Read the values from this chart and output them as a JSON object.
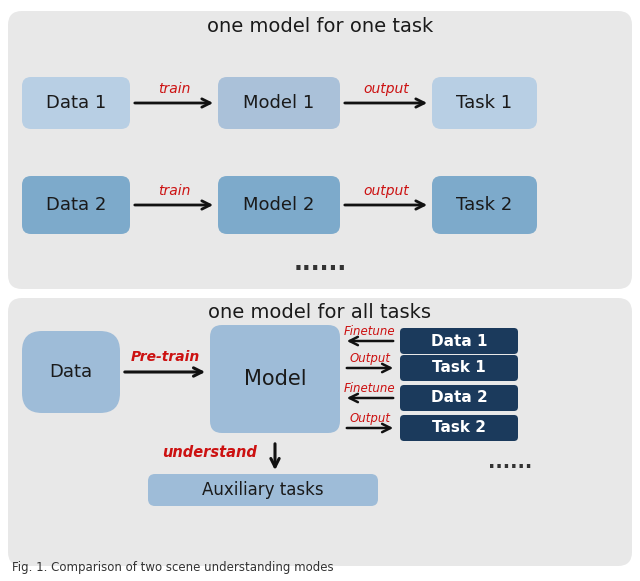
{
  "title_top": "one model for one task",
  "title_bottom": "one model for all tasks",
  "caption": "Fig. 1. Comparison of two scene understanding modes",
  "bg_color": "#e8e8e8",
  "box_light_blue_row1": "#b8ccdf",
  "box_medium_blue_row1": "#aac0d8",
  "box_darker_blue_row2": "#7ba3cc",
  "box_model_bottom": "#a0bcda",
  "box_data_bottom": "#a0bcda",
  "box_dark_navy": "#1b3a5c",
  "box_aux": "#a8c0d8",
  "text_black": "#1a1a1a",
  "text_red": "#cc1111",
  "text_white": "#ffffff",
  "arrow_color": "#111111",
  "fig_bg": "#ffffff"
}
